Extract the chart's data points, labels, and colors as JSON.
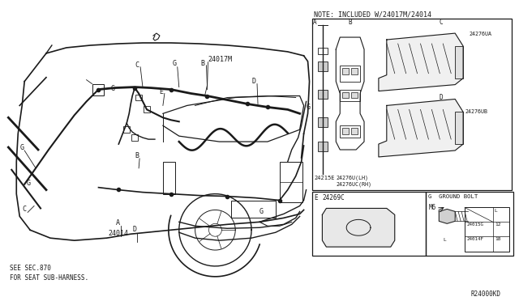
{
  "bg_color": "#ffffff",
  "line_color": "#1a1a1a",
  "fig_width": 6.4,
  "fig_height": 3.72,
  "dpi": 100,
  "note_text": "NOTE: INCLUDED W/24017M/24014",
  "bottom_left_text1": "SEE SEC.870",
  "bottom_left_text2": "FOR SEAT SUB-HARNESS.",
  "bottom_right_text": "R24000KD",
  "font_size_label": 5.5,
  "font_size_note": 6.0,
  "font_size_bottom": 5.5,
  "font_size_part": 5.5,
  "font_size_small": 4.5
}
